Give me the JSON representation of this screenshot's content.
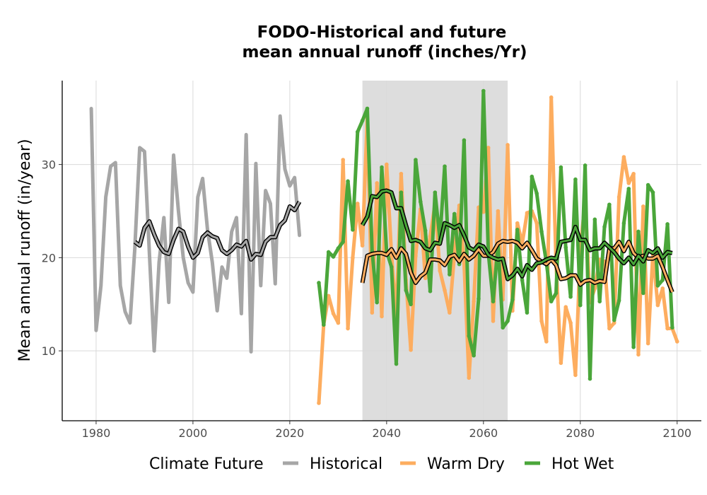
{
  "chart_data": {
    "type": "line",
    "title_line1": "FODO-Historical and future",
    "title_line2": "mean annual runoff (inches/Yr)",
    "xlabel": "",
    "ylabel": "Mean annual runoff (in/year)",
    "xlim": [
      1973,
      2105
    ],
    "ylim": [
      2.5,
      39
    ],
    "x_ticks": [
      1980,
      2000,
      2020,
      2040,
      2060,
      2080,
      2100
    ],
    "y_ticks": [
      10,
      20,
      30
    ],
    "grid": true,
    "shaded_period": [
      2035,
      2065
    ],
    "legend": {
      "title": "Climate Future",
      "position": "bottom",
      "items": [
        "Historical",
        "Warm Dry",
        "Hot Wet"
      ]
    },
    "colors": {
      "Historical": "#a6a6a6",
      "Warm Dry": "#fdad5f",
      "Hot Wet": "#4aa63a",
      "shade": "#dddddd",
      "smooth_outline": "#000000"
    },
    "series": [
      {
        "name": "Historical",
        "x_start": 1979,
        "values": [
          36.0,
          12.2,
          17.0,
          26.5,
          29.8,
          30.2,
          17.0,
          14.2,
          13.0,
          21.0,
          31.8,
          31.4,
          20.5,
          10.0,
          19.5,
          24.3,
          15.2,
          31.0,
          25.0,
          20.0,
          17.3,
          16.3,
          26.5,
          28.5,
          23.0,
          19.5,
          14.3,
          19.0,
          17.8,
          22.8,
          24.3,
          14.0,
          33.2,
          9.9,
          30.1,
          17.0,
          27.2,
          25.8,
          17.2,
          35.2,
          29.5,
          27.7,
          28.6,
          22.4
        ]
      },
      {
        "name": "Historical smoothed",
        "x_start": 1988,
        "values": [
          21.7,
          21.3,
          23.2,
          23.9,
          22.5,
          21.3,
          20.6,
          20.4,
          21.9,
          23.1,
          22.8,
          21.2,
          20.0,
          20.5,
          22.2,
          22.7,
          22.3,
          22.1,
          20.8,
          20.4,
          20.8,
          21.4,
          21.2,
          21.8,
          19.8,
          20.4,
          20.3,
          21.7,
          22.2,
          22.2,
          23.5,
          24.0,
          25.5,
          25.1,
          26.0
        ]
      },
      {
        "name": "Warm Dry",
        "x_start": 2026,
        "values": [
          4.4,
          12.8,
          15.9,
          14.0,
          13.0,
          30.5,
          12.4,
          20.0,
          25.8,
          21.3,
          35.0,
          14.1,
          28.0,
          13.7,
          30.0,
          20.4,
          13.7,
          29.0,
          17.6,
          10.1,
          20.2,
          25.2,
          17.8,
          22.3,
          25.8,
          18.6,
          16.5,
          14.1,
          20.3,
          25.6,
          19.4,
          7.1,
          15.3,
          25.4,
          24.9,
          31.8,
          13.2,
          25.0,
          15.5,
          32.1,
          14.3,
          23.7,
          21.5,
          24.8,
          25.0,
          23.7,
          13.2,
          11.0,
          37.2,
          19.4,
          8.7,
          14.7,
          13.0,
          7.4,
          20.6,
          26.3,
          15.2,
          16.7,
          19.8,
          19.6,
          12.4,
          13.0,
          26.5,
          30.8,
          28.0,
          29.0,
          9.6,
          25.5,
          10.8,
          20.5,
          14.9,
          16.7,
          12.4,
          12.4,
          11.0
        ]
      },
      {
        "name": "Warm Dry smoothed",
        "x_start": 2035,
        "values": [
          17.3,
          20.2,
          20.4,
          20.5,
          20.5,
          20.3,
          20.9,
          20.0,
          21.0,
          20.4,
          18.4,
          17.3,
          18.0,
          18.4,
          19.8,
          19.8,
          19.7,
          19.2,
          20.1,
          20.3,
          19.6,
          20.4,
          19.8,
          20.2,
          20.9,
          20.2,
          20.2,
          20.6,
          21.5,
          21.8,
          21.7,
          21.8,
          21.6,
          21.0,
          21.6,
          20.8,
          19.9,
          19.6,
          19.3,
          19.8,
          19.2,
          17.7,
          17.8,
          18.1,
          18.1,
          17.1,
          17.5,
          17.6,
          17.3,
          17.5,
          17.4,
          21.0,
          21.0,
          21.7,
          20.7,
          21.7,
          20.5,
          20.0,
          20.2,
          19.9,
          19.9,
          20.2,
          19.0,
          17.6,
          16.3
        ]
      },
      {
        "name": "Hot Wet",
        "x_start": 2026,
        "values": [
          17.3,
          12.8,
          20.6,
          20.1,
          21.0,
          21.7,
          28.2,
          23.0,
          33.5,
          34.7,
          36.0,
          20.7,
          15.2,
          29.7,
          20.7,
          19.0,
          8.6,
          27.0,
          16.5,
          15.0,
          30.5,
          26.0,
          22.9,
          16.4,
          27.0,
          22.0,
          29.8,
          18.2,
          24.7,
          19.3,
          32.6,
          11.6,
          9.5,
          15.6,
          37.9,
          20.5,
          15.3,
          21.4,
          12.5,
          13.2,
          15.5,
          23.0,
          17.6,
          14.1,
          28.7,
          26.9,
          22.8,
          19.5,
          15.3,
          16.2,
          29.7,
          21.1,
          15.8,
          28.4,
          14.9,
          29.9,
          7.0,
          24.1,
          15.3,
          23.3,
          25.7,
          13.3,
          15.4,
          23.7,
          27.4,
          10.4,
          22.8,
          16.2,
          27.8,
          27.0,
          17.0,
          17.6,
          23.6,
          12.5
        ]
      },
      {
        "name": "Hot Wet smoothed",
        "x_start": 2035,
        "values": [
          23.5,
          24.4,
          26.6,
          26.5,
          27.1,
          27.2,
          27.0,
          25.3,
          25.3,
          23.5,
          21.8,
          21.9,
          21.7,
          21.0,
          20.8,
          21.6,
          21.5,
          23.7,
          23.5,
          23.2,
          23.5,
          22.4,
          21.1,
          20.8,
          21.4,
          21.2,
          20.3,
          20.0,
          19.8,
          19.9,
          17.7,
          18.1,
          18.8,
          18.0,
          19.2,
          18.7,
          19.4,
          19.5,
          19.8,
          20.0,
          19.9,
          21.7,
          21.8,
          21.9,
          23.3,
          21.9,
          21.9,
          20.8,
          21.0,
          21.0,
          21.6,
          21.1,
          20.6,
          19.9,
          19.4,
          20.0,
          19.3,
          20.2,
          19.6,
          20.8,
          20.5,
          21.0,
          20.0,
          20.6,
          20.5
        ]
      }
    ]
  }
}
